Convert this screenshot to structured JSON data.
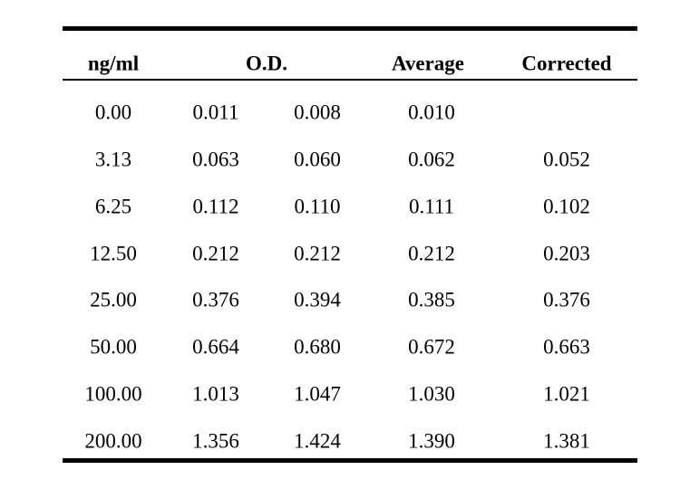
{
  "table": {
    "headers": {
      "conc": "ng/ml",
      "od": "O.D.",
      "average": "Average",
      "corrected": "Corrected"
    },
    "rows": [
      {
        "conc": "0.00",
        "od1": "0.011",
        "od2": "0.008",
        "average": "0.010",
        "corrected": ""
      },
      {
        "conc": "3.13",
        "od1": "0.063",
        "od2": "0.060",
        "average": "0.062",
        "corrected": "0.052"
      },
      {
        "conc": "6.25",
        "od1": "0.112",
        "od2": "0.110",
        "average": "0.111",
        "corrected": "0.102"
      },
      {
        "conc": "12.50",
        "od1": "0.212",
        "od2": "0.212",
        "average": "0.212",
        "corrected": "0.203"
      },
      {
        "conc": "25.00",
        "od1": "0.376",
        "od2": "0.394",
        "average": "0.385",
        "corrected": "0.376"
      },
      {
        "conc": "50.00",
        "od1": "0.664",
        "od2": "0.680",
        "average": "0.672",
        "corrected": "0.663"
      },
      {
        "conc": "100.00",
        "od1": "1.013",
        "od2": "1.047",
        "average": "1.030",
        "corrected": "1.021"
      },
      {
        "conc": "200.00",
        "od1": "1.356",
        "od2": "1.424",
        "average": "1.390",
        "corrected": "1.381"
      }
    ]
  }
}
